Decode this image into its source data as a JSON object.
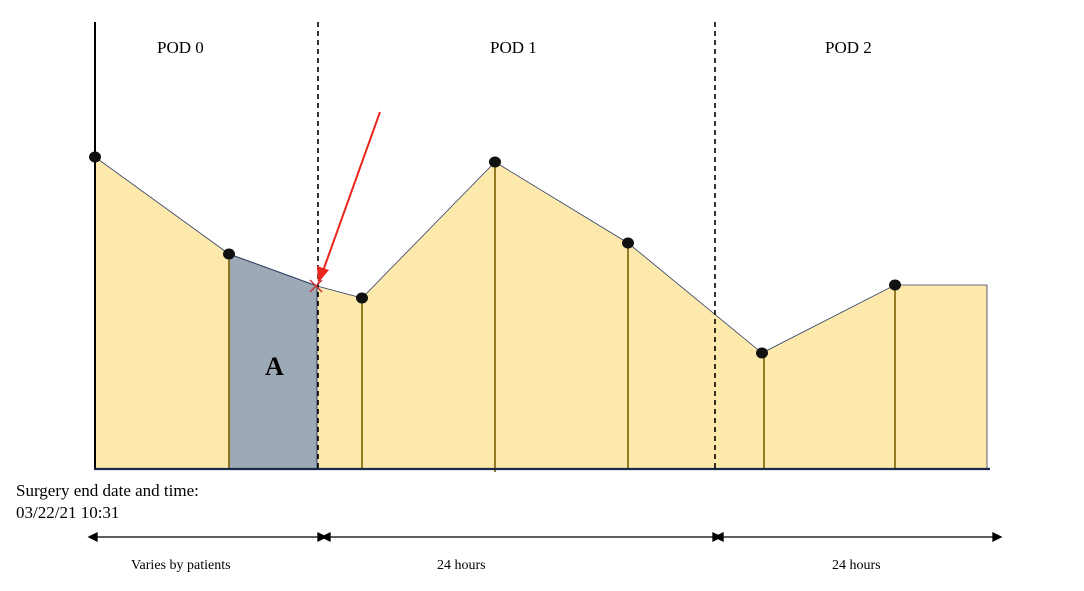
{
  "periods": [
    {
      "label": "POD 0"
    },
    {
      "label": "POD 1"
    },
    {
      "label": "POD 2"
    }
  ],
  "area_label": "A",
  "surgery_note": {
    "line1": "Surgery end date and time:",
    "line2": "03/22/21 10:31"
  },
  "durations": [
    {
      "label": "Varies by patients"
    },
    {
      "label": "24 hours"
    },
    {
      "label": "24 hours"
    }
  ],
  "colors": {
    "fill": "#fde9ac",
    "shaded_area": "#9daab5",
    "outline": "#2f3e66",
    "drop_line": "#7a6000",
    "marker": "#111111",
    "arrow": "#e8261b",
    "cross": "#c8333b"
  }
}
